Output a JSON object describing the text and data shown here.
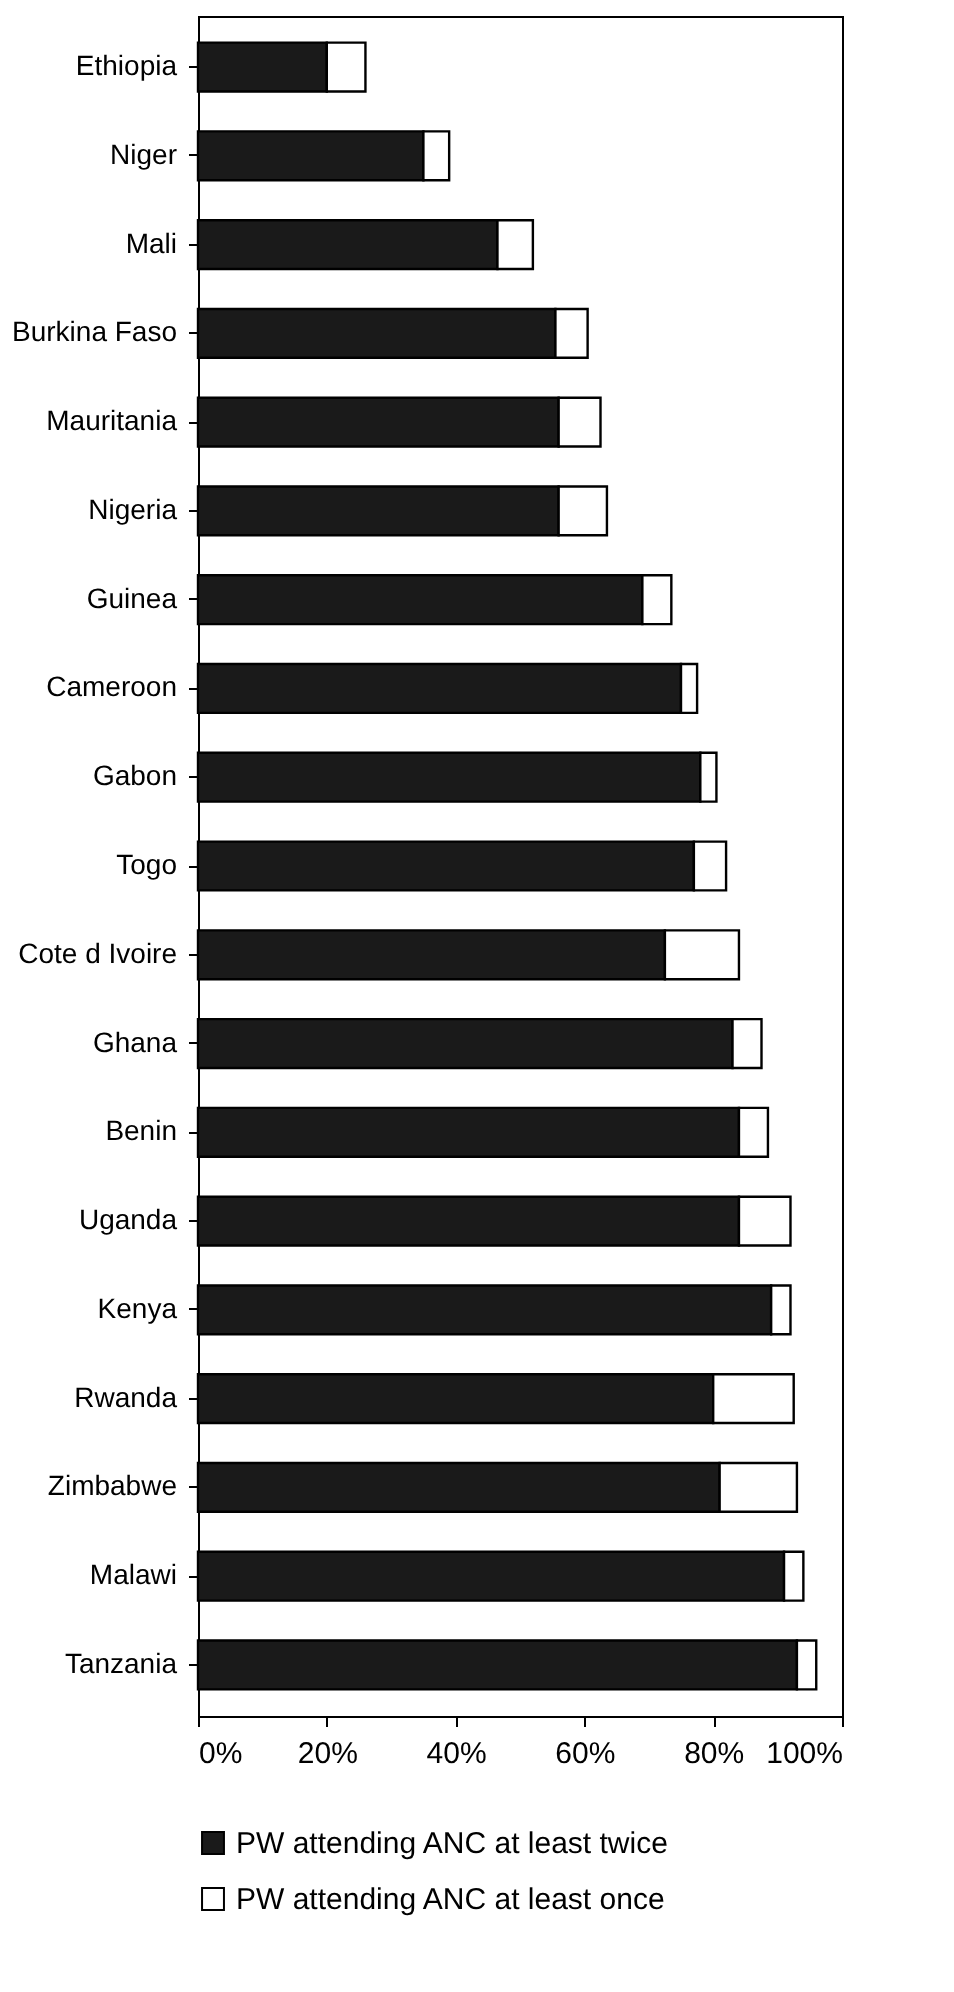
{
  "chart_data": {
    "type": "bar",
    "orientation": "horizontal",
    "stacked": true,
    "categories": [
      "Ethiopia",
      "Niger",
      "Mali",
      "Burkina Faso",
      "Mauritania",
      "Nigeria",
      "Guinea",
      "Cameroon",
      "Gabon",
      "Togo",
      "Cote d Ivoire",
      "Ghana",
      "Benin",
      "Uganda",
      "Kenya",
      "Rwanda",
      "Zimbabwe",
      "Malawi",
      "Tanzania"
    ],
    "series": [
      {
        "name": "PW attending ANC at least twice",
        "color": "#1a1a1a",
        "values": [
          20,
          35,
          46.5,
          55.5,
          56,
          56,
          69,
          75,
          78,
          77,
          72.5,
          83,
          84,
          84,
          89,
          80,
          81,
          91,
          93
        ]
      },
      {
        "name": "PW attending ANC at least once",
        "color": "#ffffff",
        "values": [
          6,
          4,
          5.5,
          5,
          6.5,
          7.5,
          4.5,
          2.5,
          2.5,
          5,
          11.5,
          4.5,
          4.5,
          8,
          3,
          12.5,
          12,
          3,
          3
        ]
      }
    ],
    "xlim": [
      0,
      100
    ],
    "xticks": [
      {
        "value": 0,
        "label": "0%"
      },
      {
        "value": 20,
        "label": "20%"
      },
      {
        "value": 40,
        "label": "40%"
      },
      {
        "value": 60,
        "label": "60%"
      },
      {
        "value": 80,
        "label": "80%"
      },
      {
        "value": 100,
        "label": "100%"
      }
    ],
    "grid": false,
    "legend": "bottom"
  }
}
